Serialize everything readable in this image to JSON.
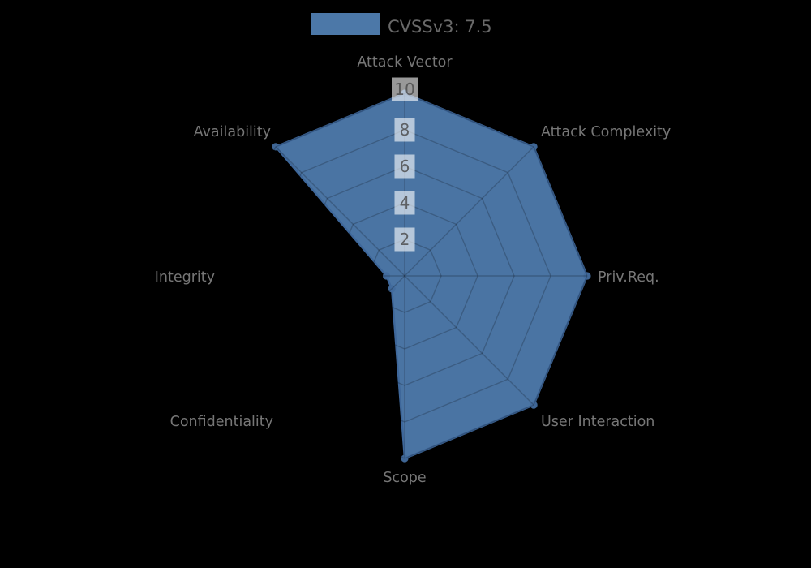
{
  "background_color": "#000000",
  "legend": {
    "label": "CVSSv3: 7.5",
    "swatch_color": "#4c78a8",
    "text_color": "#696969"
  },
  "chart_data": {
    "type": "radar",
    "title": "CVSSv3: 7.5",
    "categories": [
      "Attack Vector",
      "Attack Complexity",
      "Priv.Req.",
      "User Interaction",
      "Scope",
      "Confidentiality",
      "Integrity",
      "Availability"
    ],
    "series": [
      {
        "name": "CVSSv3: 7.5",
        "values": [
          10,
          10,
          10,
          10,
          10,
          1,
          1,
          10
        ],
        "fill_color": "#4c78a8",
        "stroke_color": "#3e679a",
        "marker_color": "#426b9d"
      }
    ],
    "scale": {
      "min": 0,
      "max": 10,
      "ticks": [
        2,
        4,
        6,
        8,
        10
      ],
      "tick_text_color": "#4a4a4a",
      "tick_backdrop_color": "#ffffff",
      "tick_backdrop_opacity": 0.6
    },
    "grid": {
      "shape": "polygon",
      "rings": 5,
      "color": "#000000",
      "line_opacity": 0.2,
      "axis_label_color": "#767676"
    },
    "angle_start": "top",
    "direction": "clockwise",
    "legend_position": "top-center"
  }
}
